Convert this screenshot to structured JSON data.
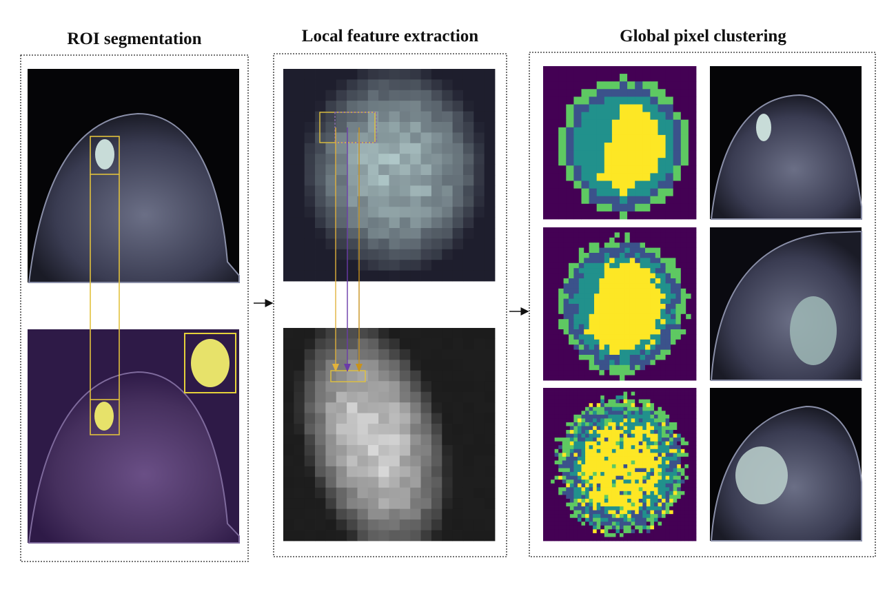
{
  "panels": [
    {
      "title": "ROI segmentation"
    },
    {
      "title": "Local feature extraction"
    },
    {
      "title": "Global pixel clustering"
    }
  ]
}
